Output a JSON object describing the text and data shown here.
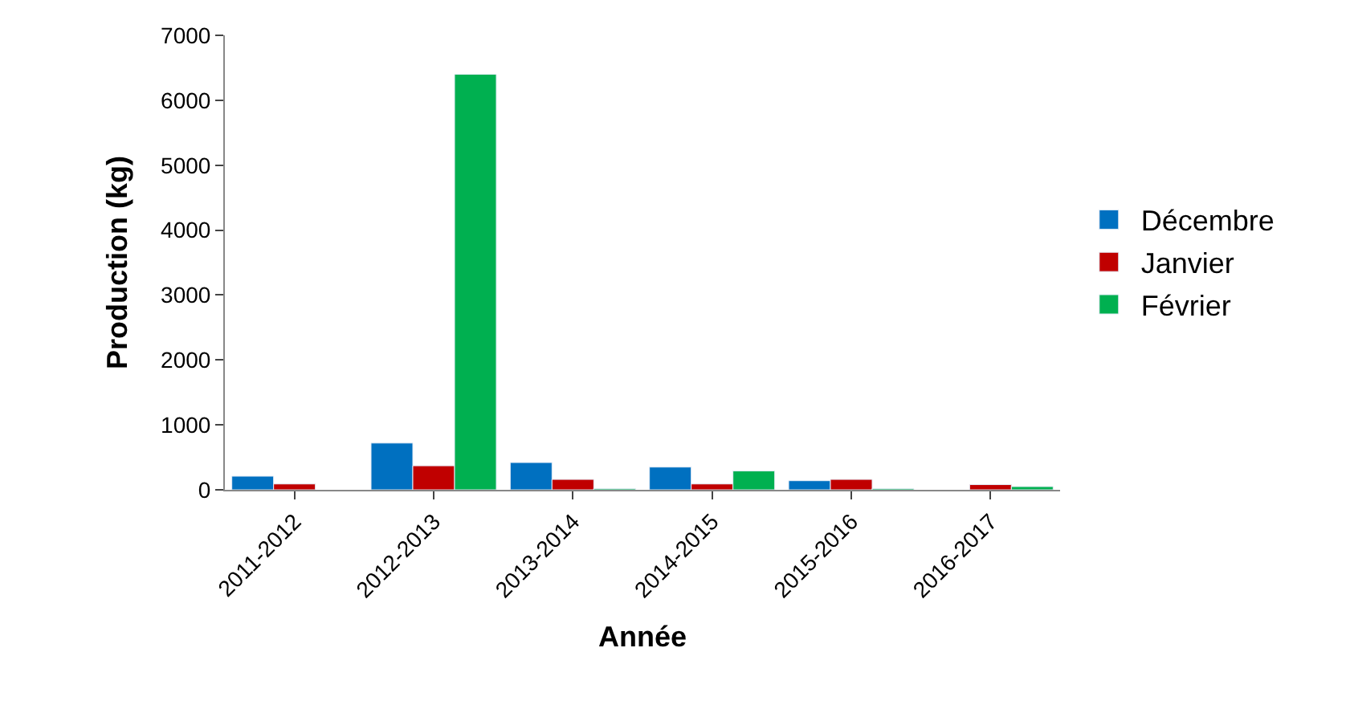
{
  "chart_data": {
    "type": "bar",
    "xlabel": "Année",
    "ylabel": "Production (kg)",
    "categories": [
      "2011-2012",
      "2012-2013",
      "2013-2014",
      "2014-2015",
      "2015-2016",
      "2016-2017"
    ],
    "series": [
      {
        "name": "Décembre",
        "color": "#0070c0",
        "values": [
          210,
          720,
          420,
          350,
          140,
          null
        ]
      },
      {
        "name": "Janvier",
        "color": "#c00000",
        "values": [
          90,
          370,
          160,
          90,
          160,
          80
        ]
      },
      {
        "name": "Février",
        "color": "#00b050",
        "values": [
          null,
          6400,
          20,
          290,
          20,
          50
        ]
      }
    ],
    "ylim": [
      0,
      7000
    ],
    "yticks": [
      0,
      1000,
      2000,
      3000,
      4000,
      5000,
      6000,
      7000
    ],
    "legend": "right"
  }
}
